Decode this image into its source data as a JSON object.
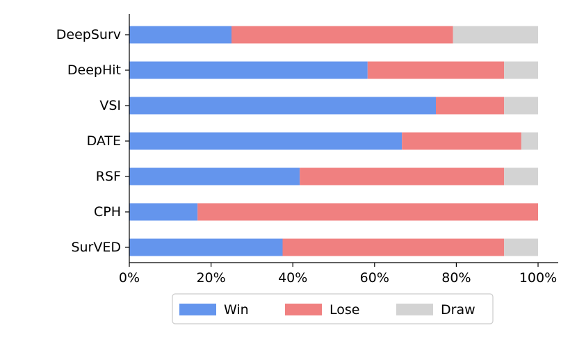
{
  "chart_data": {
    "type": "bar",
    "orientation": "horizontal",
    "stacked": true,
    "categories": [
      "DeepSurv",
      "DeepHit",
      "VSI",
      "DATE",
      "RSF",
      "CPH",
      "SurVED"
    ],
    "series": [
      {
        "name": "Win",
        "color": "#6495ED",
        "values": [
          25.0,
          58.3,
          75.0,
          66.7,
          41.7,
          16.7,
          37.5
        ]
      },
      {
        "name": "Lose",
        "color": "#F08080",
        "values": [
          54.2,
          33.4,
          16.7,
          29.2,
          50.0,
          83.3,
          54.2
        ]
      },
      {
        "name": "Draw",
        "color": "#D3D3D3",
        "values": [
          20.8,
          8.3,
          8.3,
          4.1,
          8.3,
          0.0,
          8.3
        ]
      }
    ],
    "xlim": [
      0,
      100
    ],
    "xticks": [
      "0%",
      "20%",
      "40%",
      "60%",
      "80%",
      "100%"
    ],
    "xlabel": "",
    "ylabel": "",
    "title": "",
    "grid": false,
    "legend_position": "bottom-center"
  }
}
